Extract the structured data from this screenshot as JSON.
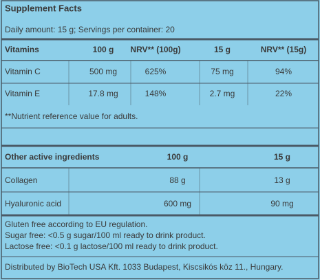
{
  "header": {
    "title": "Supplement Facts",
    "daily_amount": "Daily amount: 15 g; Servings per container: 20"
  },
  "vitamins": {
    "columns": [
      "Vitamins",
      "100 g",
      "NRV** (100g)",
      "15 g",
      "NRV** (15g)"
    ],
    "rows": [
      [
        "Vitamin C",
        "500 mg",
        "625%",
        "75 mg",
        "94%"
      ],
      [
        "Vitamin E",
        "17.8 mg",
        "148%",
        "2.7 mg",
        "22%"
      ]
    ]
  },
  "footnote": "**Nutrient reference value for adults.",
  "other": {
    "columns": [
      "Other active ingredients",
      "100 g",
      "15 g"
    ],
    "rows": [
      [
        "Collagen",
        "88 g",
        "13 g"
      ],
      [
        "Hyaluronic acid",
        "600 mg",
        "90 mg"
      ]
    ]
  },
  "notes": [
    "Gluten free according to EU regulation.",
    "Sugar free: <0.5 g sugar/100 ml ready to drink product.",
    "Lactose free: <0.1 g lactose/100 ml ready to drink product."
  ],
  "distributor": "Distributed by BioTech USA Kft. 1033 Budapest, Kiscsikós köz 11., Hungary."
}
